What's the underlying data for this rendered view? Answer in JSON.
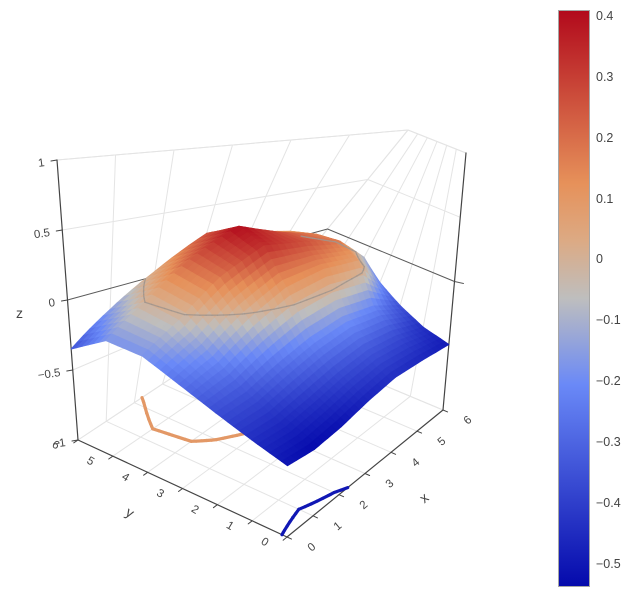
{
  "chart_data": {
    "type": "surface",
    "title": "",
    "x": [
      0,
      1,
      2,
      3,
      4,
      5,
      6
    ],
    "y": [
      0,
      1,
      2,
      3,
      4,
      5,
      6
    ],
    "z_grid": [
      [
        -0.51,
        -0.535,
        -0.515,
        -0.47,
        -0.44,
        -0.46,
        -0.49
      ],
      [
        -0.44,
        -0.45,
        -0.41,
        -0.36,
        -0.33,
        -0.36,
        -0.44
      ],
      [
        -0.36,
        -0.34,
        -0.26,
        -0.19,
        -0.16,
        -0.21,
        -0.35
      ],
      [
        -0.27,
        -0.19,
        -0.03,
        0.1,
        0.13,
        0.08,
        -0.24
      ],
      [
        -0.18,
        -0.03,
        0.19,
        0.34,
        0.27,
        0.17,
        -0.1
      ],
      [
        -0.18,
        0.0,
        0.23,
        0.41,
        0.27,
        0.15,
        -0.07
      ],
      [
        -0.35,
        -0.16,
        0.04,
        0.26,
        0.19,
        0.09,
        -0.14
      ]
    ],
    "z_axis_range": [
      -1,
      1
    ],
    "color_range": {
      "cmin": -0.535,
      "cmax": 0.41
    },
    "colorscale": [
      [
        0.0,
        [
          5,
          10,
          172
        ]
      ],
      [
        0.35,
        [
          106,
          137,
          247
        ]
      ],
      [
        0.5,
        [
          190,
          190,
          190
        ]
      ],
      [
        0.6,
        [
          220,
          170,
          132
        ]
      ],
      [
        0.7,
        [
          230,
          145,
          90
        ]
      ],
      [
        1.0,
        [
          178,
          10,
          28
        ]
      ]
    ],
    "contours": {
      "surface_levels": [
        0
      ],
      "projected_levels": [
        -0.5,
        0.1
      ]
    },
    "axes": {
      "x": {
        "title": "x",
        "tick_labels": [
          "0",
          "1",
          "2",
          "3",
          "4",
          "5",
          "6"
        ],
        "tick_values": [
          0,
          1,
          2,
          3,
          4,
          5,
          6
        ]
      },
      "y": {
        "title": "y",
        "tick_labels": [
          "0",
          "1",
          "2",
          "3",
          "4",
          "5",
          "6"
        ],
        "tick_values": [
          0,
          1,
          2,
          3,
          4,
          5,
          6
        ]
      },
      "z": {
        "title": "z",
        "tick_labels": [
          "1",
          "0.5",
          "0",
          "−0.5",
          "−1"
        ],
        "tick_values": [
          1,
          0.5,
          0,
          -0.5,
          -1
        ]
      }
    },
    "colorbar_ticks": [
      {
        "label": "0.4",
        "value": 0.4
      },
      {
        "label": "0.3",
        "value": 0.3
      },
      {
        "label": "0.2",
        "value": 0.2
      },
      {
        "label": "0.1",
        "value": 0.1
      },
      {
        "label": "0",
        "value": 0
      },
      {
        "label": "−0.1",
        "value": -0.1
      },
      {
        "label": "−0.2",
        "value": -0.2
      },
      {
        "label": "−0.3",
        "value": -0.3
      },
      {
        "label": "−0.4",
        "value": -0.4
      },
      {
        "label": "−0.5",
        "value": -0.5
      }
    ],
    "colors": {
      "background": "#ffffff",
      "grid_line": "#e4e4e4",
      "axis_line": "#444444",
      "zero_line": "#5a5a5a",
      "tick_text": "#444444",
      "surface_contour": "#a1958d",
      "colorbar_border": "#a6a6a6"
    }
  }
}
